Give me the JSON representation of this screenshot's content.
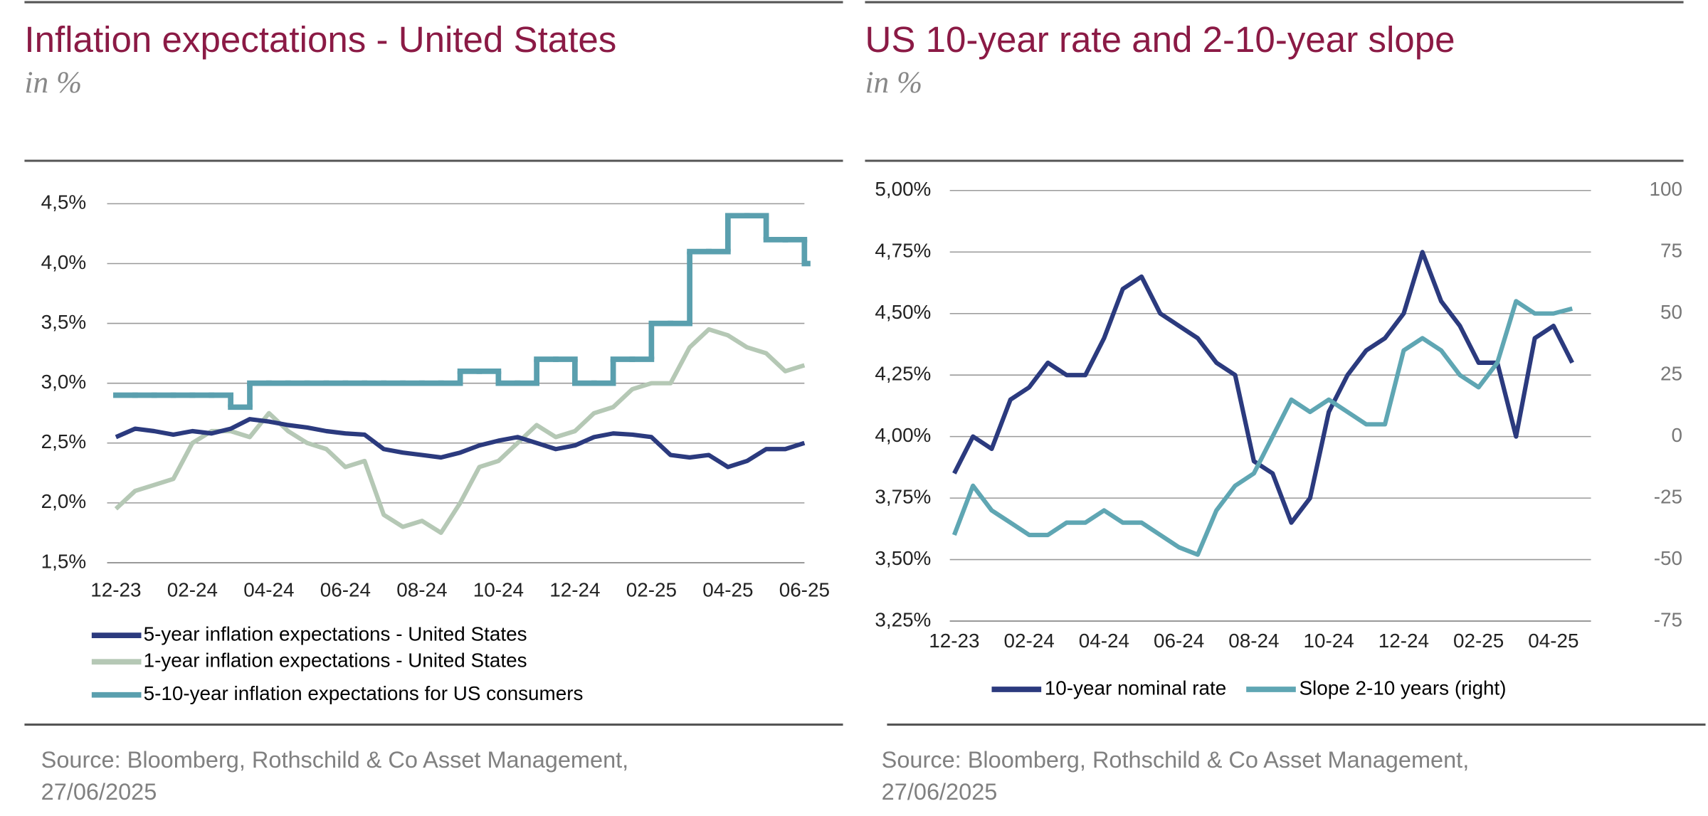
{
  "chart_data": [
    {
      "type": "line",
      "title": "Inflation expectations - United States",
      "subtitle": "in %",
      "source": [
        "Source: Bloomberg, Rothschild & Co Asset Management,",
        "27/06/2025"
      ],
      "categories": [
        "12-23",
        null,
        null,
        null,
        "02-24",
        null,
        null,
        null,
        "04-24",
        null,
        null,
        null,
        "06-24",
        null,
        null,
        null,
        "08-24",
        null,
        null,
        null,
        "10-24",
        null,
        null,
        null,
        "12-24",
        null,
        null,
        null,
        "02-25",
        null,
        null,
        null,
        "04-25",
        null,
        null,
        null,
        "06-25"
      ],
      "ylim": [
        1.5,
        4.5
      ],
      "yticks": [
        {
          "value": 1.5,
          "label": "1,5%"
        },
        {
          "value": 2.0,
          "label": "2,0%"
        },
        {
          "value": 2.5,
          "label": "2,5%"
        },
        {
          "value": 3.0,
          "label": "3,0%"
        },
        {
          "value": 3.5,
          "label": "3,5%"
        },
        {
          "value": 4.0,
          "label": "4,0%"
        },
        {
          "value": 4.5,
          "label": "4,5%"
        }
      ],
      "grid": true,
      "legend": "bottom-left",
      "series": [
        {
          "name": "5-year inflation expectations - United States",
          "color": "#2b3a7e",
          "values": [
            2.55,
            2.62,
            2.6,
            2.57,
            2.6,
            2.58,
            2.62,
            2.7,
            2.68,
            2.65,
            2.63,
            2.6,
            2.58,
            2.57,
            2.45,
            2.42,
            2.4,
            2.38,
            2.42,
            2.48,
            2.52,
            2.55,
            2.5,
            2.45,
            2.48,
            2.55,
            2.58,
            2.57,
            2.55,
            2.4,
            2.38,
            2.4,
            2.3,
            2.35,
            2.45,
            2.45,
            2.5
          ]
        },
        {
          "name": "1-year inflation expectations - United States",
          "color": "#b5c8b5",
          "values": [
            1.95,
            2.1,
            2.15,
            2.2,
            2.5,
            2.6,
            2.6,
            2.55,
            2.75,
            2.6,
            2.5,
            2.45,
            2.3,
            2.35,
            1.9,
            1.8,
            1.85,
            1.75,
            2.0,
            2.3,
            2.35,
            2.5,
            2.65,
            2.55,
            2.6,
            2.75,
            2.8,
            2.95,
            3.0,
            3.0,
            3.3,
            3.45,
            3.4,
            3.3,
            3.25,
            3.1,
            3.15
          ]
        },
        {
          "name": "5-10-year inflation expectations for US consumers",
          "color": "#5a9fae",
          "step": true,
          "values": [
            2.9,
            2.9,
            2.9,
            2.9,
            2.9,
            2.9,
            2.8,
            3.0,
            3.0,
            3.0,
            3.0,
            3.0,
            3.0,
            3.0,
            3.0,
            3.0,
            3.0,
            3.0,
            3.1,
            3.1,
            3.0,
            3.0,
            3.2,
            3.2,
            3.0,
            3.0,
            3.2,
            3.2,
            3.5,
            3.5,
            4.1,
            4.1,
            4.4,
            4.4,
            4.2,
            4.2,
            4.0
          ]
        }
      ]
    },
    {
      "type": "line",
      "title": "US 10-year rate and 2-10-year slope",
      "subtitle": "in %",
      "source": [
        "Source: Bloomberg, Rothschild & Co Asset Management,",
        "27/06/2025"
      ],
      "categories": [
        "12-23",
        null,
        null,
        null,
        "02-24",
        null,
        null,
        null,
        "04-24",
        null,
        null,
        null,
        "06-24",
        null,
        null,
        null,
        "08-24",
        null,
        null,
        null,
        "10-24",
        null,
        null,
        null,
        "12-24",
        null,
        null,
        null,
        "02-25",
        null,
        null,
        null,
        "04-25",
        null
      ],
      "ylim": [
        3.25,
        5.0
      ],
      "yticks": [
        {
          "value": 3.25,
          "label": "3,25%"
        },
        {
          "value": 3.5,
          "label": "3,50%"
        },
        {
          "value": 3.75,
          "label": "3,75%"
        },
        {
          "value": 4.0,
          "label": "4,00%"
        },
        {
          "value": 4.25,
          "label": "4,25%"
        },
        {
          "value": 4.5,
          "label": "4,50%"
        },
        {
          "value": 4.75,
          "label": "4,75%"
        },
        {
          "value": 5.0,
          "label": "5,00%"
        }
      ],
      "y2lim": [
        -75,
        100
      ],
      "y2ticks": [
        -75,
        -50,
        -25,
        0,
        25,
        50,
        75,
        100
      ],
      "grid": true,
      "legend": "bottom",
      "series": [
        {
          "name": "10-year nominal rate",
          "color": "#2b3a7e",
          "values": [
            3.85,
            4.0,
            3.95,
            4.15,
            4.2,
            4.3,
            4.25,
            4.25,
            4.4,
            4.6,
            4.65,
            4.5,
            4.45,
            4.4,
            4.3,
            4.25,
            3.9,
            3.85,
            3.65,
            3.75,
            4.1,
            4.25,
            4.35,
            4.4,
            4.5,
            4.75,
            4.55,
            4.45,
            4.3,
            4.3,
            4.0,
            4.4,
            4.45,
            4.3
          ]
        },
        {
          "name": "Slope 2-10 years (right)",
          "color": "#5fa6b3",
          "axis": "y2",
          "values": [
            -40,
            -20,
            -30,
            -35,
            -40,
            -40,
            -35,
            -35,
            -30,
            -35,
            -35,
            -40,
            -45,
            -48,
            -30,
            -20,
            -15,
            0,
            15,
            10,
            15,
            10,
            5,
            5,
            35,
            40,
            35,
            25,
            20,
            30,
            55,
            50,
            50,
            52
          ]
        }
      ]
    }
  ]
}
